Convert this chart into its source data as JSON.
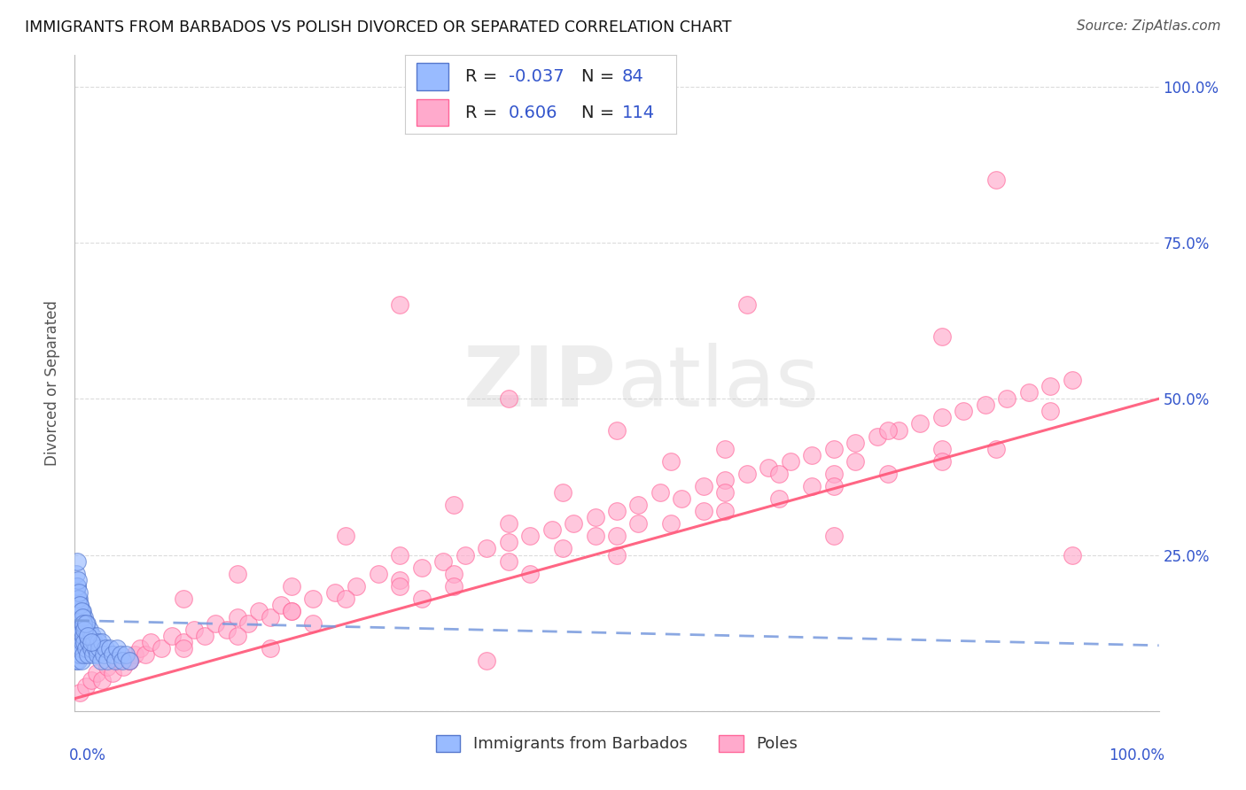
{
  "title": "IMMIGRANTS FROM BARBADOS VS POLISH DIVORCED OR SEPARATED CORRELATION CHART",
  "source": "Source: ZipAtlas.com",
  "ylabel": "Divorced or Separated",
  "watermark_zip": "ZIP",
  "watermark_atlas": "atlas",
  "blue_color": "#99BBFF",
  "pink_color": "#FFAACC",
  "blue_edge": "#5577CC",
  "pink_edge": "#FF6699",
  "blue_line_color": "#7799DD",
  "pink_line_color": "#FF5577",
  "axis_label_color": "#3355CC",
  "grid_color": "#CCCCCC",
  "background_color": "#FFFFFF",
  "legend_r_color": "#3355CC",
  "legend_n_color": "#3355CC",
  "blue_scatter_x": [
    0.001,
    0.001,
    0.001,
    0.001,
    0.001,
    0.002,
    0.002,
    0.002,
    0.002,
    0.002,
    0.002,
    0.002,
    0.002,
    0.002,
    0.003,
    0.003,
    0.003,
    0.003,
    0.003,
    0.003,
    0.003,
    0.004,
    0.004,
    0.004,
    0.004,
    0.004,
    0.004,
    0.005,
    0.005,
    0.005,
    0.005,
    0.005,
    0.006,
    0.006,
    0.006,
    0.006,
    0.007,
    0.007,
    0.007,
    0.008,
    0.008,
    0.009,
    0.009,
    0.01,
    0.01,
    0.011,
    0.012,
    0.012,
    0.013,
    0.014,
    0.015,
    0.016,
    0.017,
    0.018,
    0.019,
    0.02,
    0.021,
    0.022,
    0.023,
    0.024,
    0.025,
    0.027,
    0.028,
    0.03,
    0.032,
    0.035,
    0.037,
    0.039,
    0.042,
    0.044,
    0.047,
    0.05,
    0.001,
    0.002,
    0.002,
    0.003,
    0.003,
    0.004,
    0.005,
    0.006,
    0.007,
    0.008,
    0.009,
    0.01,
    0.012,
    0.015
  ],
  "blue_scatter_y": [
    0.14,
    0.17,
    0.11,
    0.19,
    0.08,
    0.15,
    0.12,
    0.18,
    0.1,
    0.16,
    0.13,
    0.09,
    0.2,
    0.11,
    0.14,
    0.17,
    0.1,
    0.13,
    0.16,
    0.11,
    0.08,
    0.15,
    0.12,
    0.18,
    0.1,
    0.13,
    0.16,
    0.11,
    0.14,
    0.09,
    0.17,
    0.12,
    0.15,
    0.1,
    0.13,
    0.08,
    0.14,
    0.11,
    0.16,
    0.12,
    0.09,
    0.15,
    0.11,
    0.13,
    0.1,
    0.14,
    0.12,
    0.09,
    0.11,
    0.13,
    0.1,
    0.12,
    0.09,
    0.11,
    0.1,
    0.12,
    0.09,
    0.11,
    0.1,
    0.08,
    0.11,
    0.09,
    0.1,
    0.08,
    0.1,
    0.09,
    0.08,
    0.1,
    0.09,
    0.08,
    0.09,
    0.08,
    0.22,
    0.2,
    0.24,
    0.18,
    0.21,
    0.19,
    0.17,
    0.16,
    0.15,
    0.14,
    0.13,
    0.14,
    0.12,
    0.11
  ],
  "pink_scatter_x": [
    0.005,
    0.01,
    0.015,
    0.02,
    0.025,
    0.03,
    0.035,
    0.04,
    0.045,
    0.05,
    0.055,
    0.06,
    0.065,
    0.07,
    0.08,
    0.09,
    0.1,
    0.11,
    0.12,
    0.13,
    0.14,
    0.15,
    0.16,
    0.17,
    0.18,
    0.19,
    0.2,
    0.22,
    0.24,
    0.26,
    0.28,
    0.3,
    0.32,
    0.34,
    0.36,
    0.38,
    0.4,
    0.42,
    0.44,
    0.46,
    0.48,
    0.5,
    0.52,
    0.54,
    0.56,
    0.58,
    0.6,
    0.62,
    0.64,
    0.66,
    0.68,
    0.7,
    0.72,
    0.74,
    0.76,
    0.78,
    0.8,
    0.82,
    0.84,
    0.86,
    0.88,
    0.9,
    0.92,
    0.3,
    0.4,
    0.5,
    0.6,
    0.7,
    0.8,
    0.1,
    0.2,
    0.3,
    0.4,
    0.5,
    0.6,
    0.7,
    0.8,
    0.15,
    0.25,
    0.35,
    0.45,
    0.55,
    0.65,
    0.75,
    0.05,
    0.1,
    0.15,
    0.2,
    0.25,
    0.3,
    0.35,
    0.4,
    0.45,
    0.5,
    0.55,
    0.6,
    0.65,
    0.7,
    0.75,
    0.8,
    0.85,
    0.9,
    0.48,
    0.52,
    0.35,
    0.42,
    0.58,
    0.32,
    0.68,
    0.72,
    0.22,
    0.85,
    0.62,
    0.18,
    0.92,
    0.38
  ],
  "pink_scatter_y": [
    0.03,
    0.04,
    0.05,
    0.06,
    0.05,
    0.07,
    0.06,
    0.08,
    0.07,
    0.08,
    0.09,
    0.1,
    0.09,
    0.11,
    0.1,
    0.12,
    0.11,
    0.13,
    0.12,
    0.14,
    0.13,
    0.15,
    0.14,
    0.16,
    0.15,
    0.17,
    0.16,
    0.18,
    0.19,
    0.2,
    0.22,
    0.21,
    0.23,
    0.24,
    0.25,
    0.26,
    0.27,
    0.28,
    0.29,
    0.3,
    0.31,
    0.32,
    0.33,
    0.35,
    0.34,
    0.36,
    0.37,
    0.38,
    0.39,
    0.4,
    0.41,
    0.42,
    0.43,
    0.44,
    0.45,
    0.46,
    0.47,
    0.48,
    0.49,
    0.5,
    0.51,
    0.52,
    0.53,
    0.65,
    0.5,
    0.45,
    0.42,
    0.38,
    0.6,
    0.18,
    0.2,
    0.25,
    0.3,
    0.25,
    0.35,
    0.28,
    0.42,
    0.22,
    0.28,
    0.33,
    0.35,
    0.4,
    0.38,
    0.45,
    0.08,
    0.1,
    0.12,
    0.16,
    0.18,
    0.2,
    0.22,
    0.24,
    0.26,
    0.28,
    0.3,
    0.32,
    0.34,
    0.36,
    0.38,
    0.4,
    0.42,
    0.48,
    0.28,
    0.3,
    0.2,
    0.22,
    0.32,
    0.18,
    0.36,
    0.4,
    0.14,
    0.85,
    0.65,
    0.1,
    0.25,
    0.08
  ],
  "pink_trend_x": [
    0.0,
    1.0
  ],
  "pink_trend_y": [
    0.02,
    0.5
  ],
  "blue_trend_x": [
    0.0,
    1.0
  ],
  "blue_trend_y": [
    0.145,
    0.105
  ],
  "xlim": [
    0.0,
    1.0
  ],
  "ylim": [
    0.0,
    1.05
  ],
  "yticks": [
    0.0,
    0.25,
    0.5,
    0.75,
    1.0
  ],
  "ytick_labels_right": [
    "",
    "25.0%",
    "50.0%",
    "75.0%",
    "100.0%"
  ]
}
